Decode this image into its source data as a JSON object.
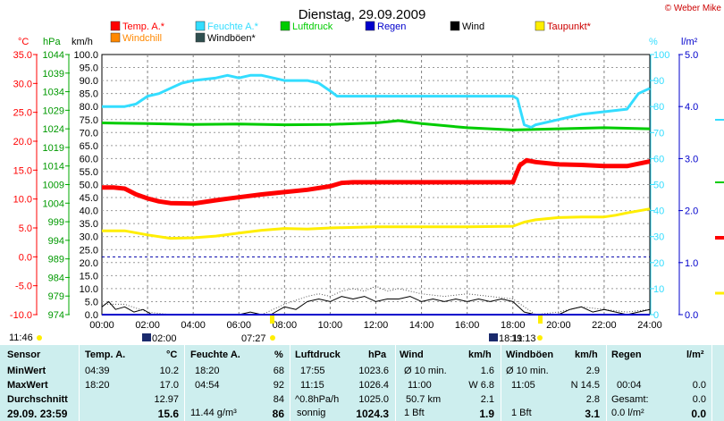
{
  "title": "Dienstag, 29.09.2009",
  "copyright": "© Weber Mike",
  "colors": {
    "temp": "#ff0000",
    "feuchte": "#33ddff",
    "luftdruck": "#00cc00",
    "regen": "#0000cc",
    "wind": "#000000",
    "taupunkt": "#ffee00",
    "windchill": "#ff8800",
    "windboeen": "#2f4f4f",
    "table_bg": "#cdeeee",
    "plot_bg": "#ffffff"
  },
  "axes": {
    "left_units": [
      "°C",
      "hPa",
      "km/h"
    ],
    "right_units": [
      "%",
      "l/m²"
    ],
    "temp_ticks": [
      "35.0",
      "30.0",
      "25.0",
      "20.0",
      "15.0",
      "10.0",
      "5.0",
      "0.0",
      "-5.0",
      "-10.0"
    ],
    "hpa_ticks": [
      "1044",
      "1039",
      "1034",
      "1029",
      "1024",
      "1019",
      "1014",
      "1009",
      "1004",
      "999",
      "994",
      "989",
      "984",
      "979",
      "974"
    ],
    "kmh_ticks": [
      "100.0",
      "95.0",
      "90.0",
      "85.0",
      "80.0",
      "75.0",
      "70.0",
      "65.0",
      "60.0",
      "55.0",
      "50.0",
      "45.0",
      "40.0",
      "35.0",
      "30.0",
      "25.0",
      "20.0",
      "15.0",
      "10.0",
      "5.0",
      "0.0"
    ],
    "pct_ticks": [
      "100",
      "90",
      "80",
      "70",
      "60",
      "50",
      "40",
      "30",
      "20",
      "10",
      "0"
    ],
    "rain_ticks": [
      "5.0",
      "4.0",
      "3.0",
      "2.0",
      "1.0",
      "0.0"
    ],
    "x_ticks": [
      "00:00",
      "02:00",
      "04:00",
      "06:00",
      "08:00",
      "10:00",
      "12:00",
      "14:00",
      "16:00",
      "18:00",
      "20:00",
      "22:00",
      "24:00"
    ]
  },
  "markers": {
    "sunrise_left": "11:46",
    "m1": "02:00",
    "m2": "07:27",
    "m3": "18:11",
    "m4": "19:13"
  },
  "chart_data": {
    "type": "line",
    "x_unit": "hours",
    "xlim": [
      0,
      24
    ],
    "grid": true,
    "series": [
      {
        "name": "Temp. A.*",
        "axis": "°C",
        "ylim": [
          -10,
          35
        ],
        "x": [
          0,
          0.5,
          1,
          1.5,
          2,
          2.5,
          3,
          4,
          5,
          6,
          7,
          8,
          9,
          10,
          10.5,
          11,
          12,
          14,
          16,
          17,
          18,
          18.3,
          18.6,
          19,
          20,
          21,
          22,
          23,
          24
        ],
        "values": [
          12,
          12,
          11.8,
          10.8,
          10.1,
          9.6,
          9.3,
          9.2,
          9.8,
          10.3,
          10.8,
          11.2,
          11.6,
          12.2,
          12.8,
          12.9,
          12.9,
          12.9,
          12.9,
          12.9,
          12.9,
          15.8,
          16.7,
          16.4,
          16.0,
          15.9,
          15.7,
          15.7,
          16.5
        ]
      },
      {
        "name": "Feuchte A.*",
        "axis": "%",
        "ylim": [
          0,
          100
        ],
        "x": [
          0,
          1,
          1.5,
          2,
          2.5,
          3,
          3.5,
          4,
          5,
          5.5,
          6,
          6.5,
          7,
          7.5,
          8,
          9,
          9.5,
          10,
          10.3,
          11,
          12,
          14,
          16,
          17,
          18,
          18.2,
          18.5,
          18.8,
          19,
          20,
          21,
          22,
          23,
          23.5,
          24
        ],
        "values": [
          80,
          80,
          81,
          84,
          85,
          87,
          89,
          90,
          91,
          92,
          91,
          92,
          92,
          91,
          90,
          90,
          89,
          86,
          84,
          84,
          84,
          84,
          84,
          84,
          84,
          83,
          73,
          72,
          73,
          75,
          77,
          78,
          79,
          85,
          87
        ]
      },
      {
        "name": "Luftdruck",
        "axis": "hPa",
        "ylim": [
          974,
          1044
        ],
        "x": [
          0,
          2,
          4,
          6,
          8,
          10,
          12,
          13,
          14,
          16,
          18,
          20,
          22,
          24
        ],
        "values": [
          1025.6,
          1025.4,
          1025.2,
          1025.3,
          1025.1,
          1025.2,
          1025.6,
          1026.2,
          1025.4,
          1024.3,
          1023.7,
          1024.0,
          1024.3,
          1024.0
        ]
      },
      {
        "name": "Regen",
        "axis": "l/m²",
        "ylim": [
          0,
          5
        ],
        "x": [
          0,
          24
        ],
        "values": [
          0,
          0
        ]
      },
      {
        "name": "Wind",
        "axis": "km/h",
        "ylim": [
          0,
          100
        ],
        "x": [
          0,
          0.3,
          0.6,
          1,
          1.4,
          1.8,
          2.2,
          3,
          4,
          5,
          6,
          6.5,
          7,
          7.4,
          8,
          8.5,
          9,
          9.5,
          10,
          10.5,
          11,
          11.5,
          12,
          12.5,
          13,
          13.5,
          14,
          14.5,
          15,
          15.5,
          16,
          16.5,
          17,
          17.5,
          18,
          18.5,
          19,
          19.5,
          20,
          20.5,
          21,
          21.5,
          22,
          22.5,
          23,
          23.5,
          24
        ],
        "values": [
          3,
          5,
          2,
          3,
          1,
          2,
          0,
          0,
          0,
          0,
          0,
          1,
          0,
          0,
          3,
          2,
          5,
          6,
          5,
          7,
          6,
          7,
          5,
          6,
          6,
          7,
          5,
          6,
          5,
          6,
          5,
          6,
          5,
          6,
          5,
          1,
          0,
          0,
          0,
          2,
          3,
          1,
          2,
          1,
          0,
          1,
          2
        ]
      },
      {
        "name": "Taupunkt*",
        "axis": "°C",
        "ylim": [
          -10,
          35
        ],
        "x": [
          0,
          1,
          2,
          3,
          4,
          5,
          6,
          7,
          8,
          9,
          10,
          12,
          14,
          16,
          18,
          18.5,
          19,
          20,
          21,
          22,
          22.5,
          23,
          24
        ],
        "values": [
          4.5,
          4.5,
          3.8,
          3.2,
          3.3,
          3.6,
          4.1,
          4.6,
          4.9,
          4.8,
          5.0,
          5.2,
          5.2,
          5.2,
          5.3,
          6.0,
          6.4,
          6.8,
          6.9,
          6.9,
          7.2,
          7.6,
          8.3
        ]
      },
      {
        "name": "Windchill",
        "axis": "°C",
        "ylim": [
          -10,
          35
        ],
        "x": [
          18,
          18.3,
          18.6,
          19
        ],
        "values": [
          12.9,
          16.3,
          16.3,
          16.4
        ]
      },
      {
        "name": "Windböen*",
        "axis": "km/h",
        "ylim": [
          0,
          100
        ],
        "x": [
          0,
          1,
          2,
          3,
          4,
          5,
          6,
          7,
          8,
          9,
          9.5,
          10,
          10.5,
          11,
          11.5,
          12,
          12.5,
          13,
          13.5,
          14,
          15,
          16,
          17,
          18,
          19,
          20,
          21,
          22,
          23,
          24
        ],
        "values": [
          4,
          4,
          1,
          0,
          0,
          0,
          0,
          0,
          4,
          7,
          8,
          7,
          9,
          10,
          9,
          11,
          9,
          10,
          9,
          8,
          7,
          8,
          7,
          6,
          0,
          1,
          3,
          2,
          1,
          2
        ]
      }
    ]
  },
  "table": {
    "headers": {
      "sensor": "Sensor",
      "temp": "Temp. A.",
      "temp_unit": "°C",
      "feuchte": "Feuchte A.",
      "feuchte_unit": "%",
      "luftdruck": "Luftdruck",
      "luftdruck_unit": "hPa",
      "wind": "Wind",
      "wind_unit": "km/h",
      "windboeen": "Windböen",
      "windboeen_unit": "km/h",
      "regen": "Regen",
      "regen_unit": "l/m²"
    },
    "rows": [
      {
        "label": "MinWert",
        "temp_time": "04:39",
        "temp_val": "10.2",
        "feuchte_time": "18:20",
        "feuchte_val": "68",
        "luft_time": "17:55",
        "luft_val": "1023.6",
        "wind_a": "Ø 10 min.",
        "wind_val": "1.6",
        "boeen_a": "Ø 10 min.",
        "boeen_val": "2.9",
        "regen_a": "",
        "regen_val": ""
      },
      {
        "label": "MaxWert",
        "temp_time": "18:20",
        "temp_val": "17.0",
        "feuchte_time": "04:54",
        "feuchte_val": "92",
        "luft_time": "11:15",
        "luft_val": "1026.4",
        "wind_a": "11:00",
        "wind_val": "W 6.8",
        "boeen_a": "11:05",
        "boeen_val": "N 14.5",
        "regen_a": "00:04",
        "regen_val": "0.0"
      },
      {
        "label": "Durchschnitt",
        "temp_time": "",
        "temp_val": "12.97",
        "feuchte_time": "",
        "feuchte_val": "84",
        "luft_time": "^0.8hPa/h",
        "luft_val": "1025.0",
        "wind_a": "50.7 km",
        "wind_val": "2.1",
        "boeen_a": "",
        "boeen_val": "2.8",
        "regen_a": "Gesamt:",
        "regen_val": "0.0"
      },
      {
        "label": "29.09. 23:59",
        "temp_time": "",
        "temp_val": "15.6",
        "feuchte_time": "11.44 g/m³",
        "feuchte_val": "86",
        "luft_time": "sonnig",
        "luft_val": "1024.3",
        "wind_a": "1 Bft",
        "wind_val": "1.9",
        "boeen_a": "1 Bft",
        "boeen_val": "3.1",
        "regen_a": "0.0 l/m²",
        "regen_val": "0.0"
      }
    ]
  }
}
